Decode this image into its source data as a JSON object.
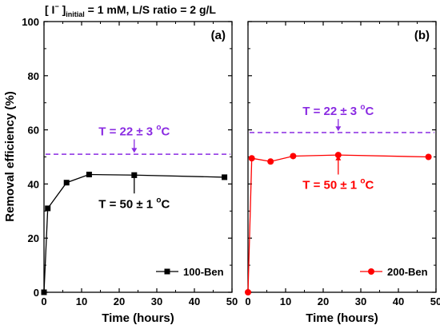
{
  "header": {
    "prefix": "[ I",
    "superscript": "−",
    "suffix": " ]",
    "subscript": "initial",
    "rest": " = 1 mM, L/S ratio = 2 g/L"
  },
  "chart_data": [
    {
      "type": "line",
      "panel_label": "(a)",
      "xlabel": "Time (hours)",
      "ylabel": "Removal efficiency (%)",
      "xlim": [
        0,
        50
      ],
      "ylim": [
        0,
        100
      ],
      "xticks": [
        0,
        10,
        20,
        30,
        40,
        50
      ],
      "yticks": [
        0,
        20,
        40,
        60,
        80,
        100
      ],
      "grid": false,
      "legend_position": "bottom-right",
      "series": [
        {
          "name": "100-Ben",
          "color": "#000000",
          "marker": "square",
          "x": [
            0,
            1,
            6,
            12,
            24,
            48
          ],
          "y": [
            0,
            31,
            40.5,
            43.5,
            43.3,
            42.5
          ]
        }
      ],
      "reference_lines": [
        {
          "y": 51,
          "color": "#8a2be2",
          "style": "dashed"
        }
      ],
      "annotations": [
        {
          "text_main": "T = 22 ± 3 ",
          "degree": "o",
          "unit": "C",
          "color": "#8a2be2",
          "arrow_x": 24,
          "arrow_from_y": 56.5,
          "arrow_to_y": 51.5
        },
        {
          "text_main": "T = 50 ± 1 ",
          "degree": "o",
          "unit": "C",
          "color": "#000000",
          "arrow_x": 24,
          "arrow_from_y": 36.5,
          "arrow_to_y": 44
        }
      ]
    },
    {
      "type": "line",
      "panel_label": "(b)",
      "xlabel": "Time (hours)",
      "ylabel": "",
      "xlim": [
        0,
        50
      ],
      "ylim": [
        0,
        100
      ],
      "xticks": [
        0,
        10,
        20,
        30,
        40,
        50
      ],
      "yticks": [
        0,
        20,
        40,
        60,
        80,
        100
      ],
      "grid": false,
      "legend_position": "bottom-right",
      "series": [
        {
          "name": "200-Ben",
          "color": "#ff0000",
          "marker": "circle",
          "x": [
            0,
            1,
            6,
            12,
            24,
            48
          ],
          "y": [
            0,
            49.5,
            48.3,
            50.3,
            50.7,
            50
          ]
        }
      ],
      "reference_lines": [
        {
          "y": 59,
          "color": "#8a2be2",
          "style": "dashed"
        }
      ],
      "annotations": [
        {
          "text_main": "T = 22 ± 3 ",
          "degree": "o",
          "unit": "C",
          "color": "#8a2be2",
          "arrow_x": 24,
          "arrow_from_y": 64,
          "arrow_to_y": 59.5
        },
        {
          "text_main": "T = 50 ± 1 ",
          "degree": "o",
          "unit": "C",
          "color": "#ff0000",
          "arrow_x": 24,
          "arrow_from_y": 43.5,
          "arrow_to_y": 50.5
        }
      ]
    }
  ]
}
